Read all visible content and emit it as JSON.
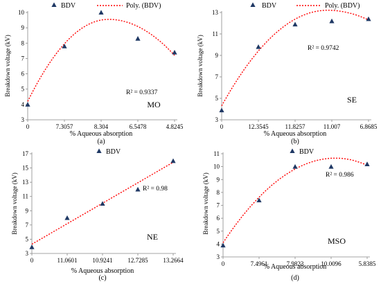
{
  "chart_data": [
    {
      "type": "scatter",
      "panel_label": "(a)",
      "tag": "MO",
      "xlabel": "% Aqueous absorption",
      "ylabel": "Breakdown voltage (kV)",
      "categories": [
        "0",
        "7.3057",
        "8.304",
        "6.5478",
        "4.8245"
      ],
      "series": [
        {
          "name": "BDV",
          "values": [
            4.0,
            7.8,
            10.0,
            8.3,
            7.4
          ],
          "color": "#1f3864"
        }
      ],
      "trend": {
        "name": "Poly. (BDV)",
        "type": "poly2",
        "color": "#ff0000",
        "start": 4.2,
        "end": 7.2
      },
      "r2": "R² = 0.9337",
      "ylim": [
        3,
        10
      ],
      "yticks": [
        "3",
        "4",
        "5",
        "6",
        "7",
        "8",
        "9",
        "10"
      ]
    },
    {
      "type": "scatter",
      "panel_label": "(b)",
      "tag": "SE",
      "xlabel": "% Aqueous absorption",
      "ylabel": "Breakdown voltage (kV)",
      "categories": [
        "0",
        "12.3545",
        "11.8257",
        "11.007",
        "6.8685"
      ],
      "series": [
        {
          "name": "BDV",
          "values": [
            3.9,
            9.8,
            11.9,
            12.2,
            12.4
          ],
          "color": "#1f3864"
        }
      ],
      "trend": {
        "name": "Poly. (BDV)",
        "type": "poly2",
        "color": "#ff0000",
        "start": 4.3,
        "end": 12.3
      },
      "r2": "R² = 0.9742",
      "ylim": [
        3,
        13
      ],
      "yticks": [
        "3",
        "5",
        "7",
        "9",
        "11",
        "13"
      ]
    },
    {
      "type": "scatter",
      "panel_label": "(c)",
      "tag": "NE",
      "xlabel": "% Aqueous absorption",
      "ylabel": "Breakdown voltage (kV)",
      "categories": [
        "0",
        "11.0601",
        "10.9241",
        "12.7285",
        "13.2664"
      ],
      "series": [
        {
          "name": "BDV",
          "values": [
            3.9,
            8.0,
            10.0,
            12.0,
            16.0
          ],
          "color": "#1f3864"
        }
      ],
      "trend": {
        "name": "",
        "type": "linear",
        "color": "#ff0000",
        "start": 4.3,
        "end": 15.8
      },
      "r2": "R² = 0.98",
      "ylim": [
        3,
        17
      ],
      "yticks": [
        "3",
        "5",
        "7",
        "9",
        "11",
        "13",
        "15",
        "17"
      ]
    },
    {
      "type": "scatter",
      "panel_label": "(d)",
      "tag": "MSO",
      "xlabel": "% Aqueous absorption",
      "ylabel": "Breakdown voltage (kV)",
      "categories": [
        "0",
        "7.4961",
        "7.9823",
        "10.0096",
        "5.8385"
      ],
      "series": [
        {
          "name": "BDV",
          "values": [
            3.9,
            7.4,
            10.0,
            10.0,
            10.2
          ],
          "color": "#1f3864"
        }
      ],
      "trend": {
        "name": "",
        "type": "poly2",
        "color": "#ff0000",
        "start": 4.1,
        "end": 10.1
      },
      "r2": "R² = 0.986",
      "ylim": [
        3,
        11
      ],
      "yticks": [
        "3",
        "4",
        "5",
        "6",
        "7",
        "8",
        "9",
        "10",
        "11"
      ]
    }
  ]
}
